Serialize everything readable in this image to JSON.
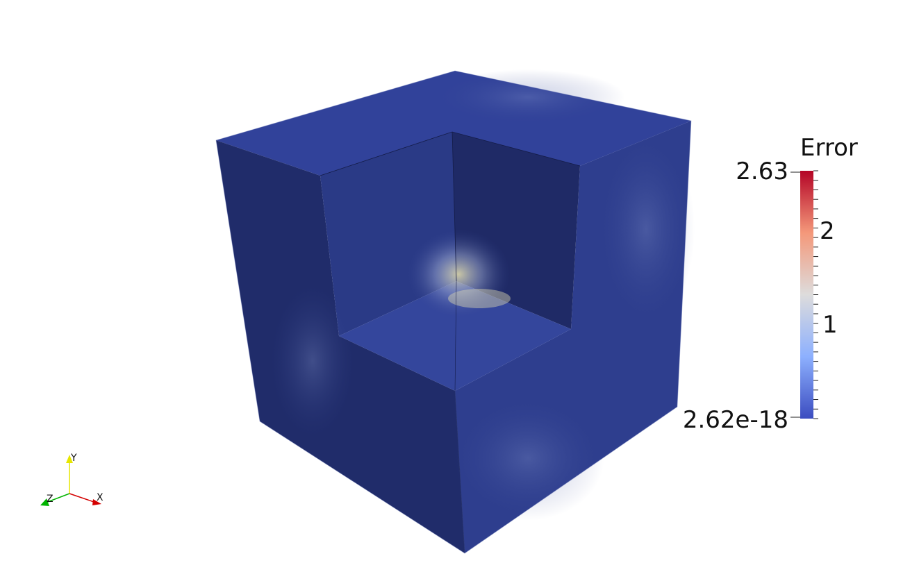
{
  "scalar_bar": {
    "title": "Error",
    "max_label": "2.63",
    "tick_2": "2",
    "tick_1": "1",
    "min_label": "2.62e-18",
    "colormap": [
      "#3b4cc0",
      "#8db0fe",
      "#dddcdc",
      "#f4987a",
      "#b40426"
    ]
  },
  "orientation_axes": {
    "x_label": "X",
    "y_label": "Y",
    "z_label": "Z",
    "x_color": "#d40000",
    "y_color": "#e6e600",
    "z_color": "#00b400"
  },
  "surface_colors": {
    "top": "#31429a",
    "left": "#202c6a",
    "right": "#2e3e8e",
    "cut_floor": "#34469c",
    "cut_back_left": "#2a3a86",
    "cut_back_right": "#1f2a66"
  }
}
